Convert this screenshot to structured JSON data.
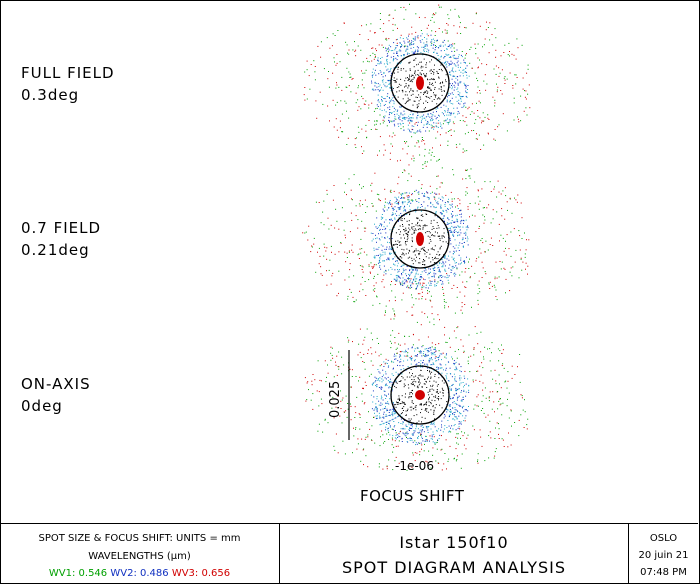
{
  "fields": [
    {
      "line1": "FULL FIELD",
      "line2": "0.3deg"
    },
    {
      "line1": "0.7 FIELD",
      "line2": "0.21deg"
    },
    {
      "line1": "ON-AXIS",
      "line2": "0deg"
    }
  ],
  "scale_bar": {
    "label": "0.025"
  },
  "focus": {
    "value": "-1e-06",
    "title": "FOCUS SHIFT"
  },
  "footer": {
    "units_line": "SPOT SIZE & FOCUS SHIFT: UNITS = mm",
    "wavelengths_line": "WAVELENGTHS (µm)",
    "wv1": "WV1: 0.546",
    "wv2": "WV2: 0.486",
    "wv3": "WV3: 0.656",
    "system_name": "Istar 150f10",
    "analysis_title": "SPOT DIAGRAM ANALYSIS",
    "program": "OSLO",
    "date": "20 juin 21",
    "time": "07:48 PM"
  },
  "colors": {
    "wv1": "#00a000",
    "wv2": "#1030c0",
    "wv3": "#d00000",
    "cyan": "#20a8c8"
  }
}
